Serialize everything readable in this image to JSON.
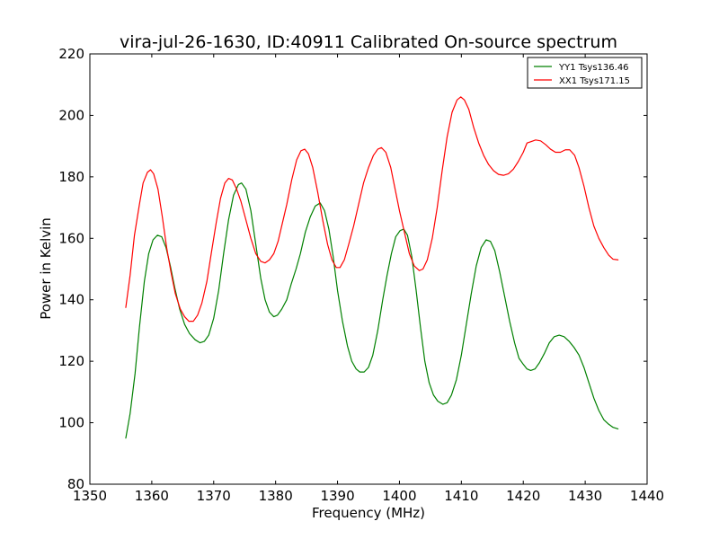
{
  "chart_data": {
    "type": "line",
    "title": "vira-jul-26-1630, ID:40911 Calibrated On-source spectrum",
    "xlabel": "Frequency (MHz)",
    "ylabel": "Power in Kelvin",
    "xlim": [
      1350,
      1440
    ],
    "ylim": [
      80,
      220
    ],
    "xticks": [
      1350,
      1360,
      1370,
      1380,
      1390,
      1400,
      1410,
      1420,
      1430,
      1440
    ],
    "yticks": [
      80,
      100,
      120,
      140,
      160,
      180,
      200,
      220
    ],
    "grid": false,
    "legend_position": "top-right",
    "series": [
      {
        "name": "YY1 Tsys136.46",
        "color": "#008000",
        "points": [
          [
            1355.8,
            95
          ],
          [
            1356.5,
            103
          ],
          [
            1357.3,
            116
          ],
          [
            1358.0,
            131
          ],
          [
            1358.8,
            146
          ],
          [
            1359.5,
            155
          ],
          [
            1360.2,
            159.5
          ],
          [
            1360.9,
            161
          ],
          [
            1361.6,
            160.5
          ],
          [
            1362.3,
            157
          ],
          [
            1363.0,
            151
          ],
          [
            1363.7,
            144
          ],
          [
            1364.5,
            137
          ],
          [
            1365.3,
            132
          ],
          [
            1366.1,
            129
          ],
          [
            1367.0,
            127
          ],
          [
            1367.8,
            126
          ],
          [
            1368.5,
            126.5
          ],
          [
            1369.2,
            128.5
          ],
          [
            1370.0,
            134
          ],
          [
            1370.8,
            143
          ],
          [
            1371.6,
            155
          ],
          [
            1372.4,
            166
          ],
          [
            1373.2,
            174
          ],
          [
            1374.0,
            177.5
          ],
          [
            1374.5,
            178
          ],
          [
            1375.2,
            176
          ],
          [
            1376.0,
            169
          ],
          [
            1376.8,
            158
          ],
          [
            1377.6,
            147
          ],
          [
            1378.3,
            140
          ],
          [
            1379.0,
            136
          ],
          [
            1379.7,
            134.5
          ],
          [
            1380.3,
            135
          ],
          [
            1381.0,
            137
          ],
          [
            1381.8,
            140
          ],
          [
            1382.5,
            145
          ],
          [
            1383.3,
            150
          ],
          [
            1384.0,
            155
          ],
          [
            1384.8,
            162
          ],
          [
            1385.6,
            167
          ],
          [
            1386.4,
            170.5
          ],
          [
            1387.2,
            171.5
          ],
          [
            1387.9,
            169
          ],
          [
            1388.6,
            163
          ],
          [
            1389.3,
            154
          ],
          [
            1390.0,
            143
          ],
          [
            1390.8,
            133
          ],
          [
            1391.6,
            125
          ],
          [
            1392.3,
            120
          ],
          [
            1393.0,
            117.5
          ],
          [
            1393.6,
            116.5
          ],
          [
            1394.3,
            116.5
          ],
          [
            1395.0,
            118
          ],
          [
            1395.7,
            122
          ],
          [
            1396.5,
            130
          ],
          [
            1397.3,
            140
          ],
          [
            1398.0,
            148
          ],
          [
            1398.7,
            155
          ],
          [
            1399.4,
            160.5
          ],
          [
            1400.1,
            162.5
          ],
          [
            1400.7,
            163
          ],
          [
            1401.3,
            161
          ],
          [
            1402.0,
            154
          ],
          [
            1402.7,
            143
          ],
          [
            1403.4,
            131
          ],
          [
            1404.1,
            120
          ],
          [
            1404.8,
            113
          ],
          [
            1405.5,
            109
          ],
          [
            1406.2,
            107
          ],
          [
            1407.0,
            106
          ],
          [
            1407.7,
            106.5
          ],
          [
            1408.4,
            109
          ],
          [
            1409.2,
            114
          ],
          [
            1410.0,
            122
          ],
          [
            1410.8,
            132
          ],
          [
            1411.6,
            142
          ],
          [
            1412.4,
            151
          ],
          [
            1413.2,
            157
          ],
          [
            1414.0,
            159.5
          ],
          [
            1414.7,
            159
          ],
          [
            1415.4,
            156
          ],
          [
            1416.2,
            149
          ],
          [
            1417.0,
            141
          ],
          [
            1417.8,
            133
          ],
          [
            1418.6,
            126
          ],
          [
            1419.3,
            121
          ],
          [
            1420.0,
            119
          ],
          [
            1420.6,
            117.5
          ],
          [
            1421.2,
            117
          ],
          [
            1421.9,
            117.5
          ],
          [
            1422.6,
            119.5
          ],
          [
            1423.4,
            122.5
          ],
          [
            1424.2,
            126
          ],
          [
            1425.0,
            128
          ],
          [
            1425.8,
            128.5
          ],
          [
            1426.6,
            128
          ],
          [
            1427.4,
            126.5
          ],
          [
            1428.2,
            124.5
          ],
          [
            1429.0,
            122
          ],
          [
            1429.8,
            118
          ],
          [
            1430.6,
            113
          ],
          [
            1431.4,
            108
          ],
          [
            1432.2,
            104
          ],
          [
            1433.0,
            101
          ],
          [
            1433.8,
            99.5
          ],
          [
            1434.5,
            98.5
          ],
          [
            1435.3,
            98
          ]
        ]
      },
      {
        "name": "XX1 Tsys171.15",
        "color": "#ff0000",
        "points": [
          [
            1355.8,
            137.5
          ],
          [
            1356.5,
            148
          ],
          [
            1357.2,
            161
          ],
          [
            1358.0,
            171
          ],
          [
            1358.6,
            178
          ],
          [
            1359.3,
            181.5
          ],
          [
            1359.8,
            182.3
          ],
          [
            1360.3,
            181
          ],
          [
            1361.0,
            176
          ],
          [
            1361.7,
            167
          ],
          [
            1362.4,
            157
          ],
          [
            1363.1,
            149
          ],
          [
            1363.8,
            142
          ],
          [
            1364.6,
            137
          ],
          [
            1365.3,
            134.5
          ],
          [
            1366.0,
            133
          ],
          [
            1366.7,
            133
          ],
          [
            1367.4,
            135
          ],
          [
            1368.1,
            139
          ],
          [
            1368.9,
            146
          ],
          [
            1369.6,
            155
          ],
          [
            1370.4,
            165
          ],
          [
            1371.1,
            173
          ],
          [
            1371.8,
            178
          ],
          [
            1372.4,
            179.5
          ],
          [
            1373.0,
            179
          ],
          [
            1373.7,
            176
          ],
          [
            1374.4,
            172
          ],
          [
            1375.2,
            166
          ],
          [
            1376.0,
            160
          ],
          [
            1376.8,
            155
          ],
          [
            1377.6,
            152.5
          ],
          [
            1378.3,
            152
          ],
          [
            1379.0,
            153
          ],
          [
            1379.7,
            155
          ],
          [
            1380.4,
            159
          ],
          [
            1381.1,
            165
          ],
          [
            1381.8,
            171
          ],
          [
            1382.6,
            179
          ],
          [
            1383.4,
            185.5
          ],
          [
            1384.1,
            188.5
          ],
          [
            1384.7,
            189
          ],
          [
            1385.3,
            187.5
          ],
          [
            1386.0,
            183
          ],
          [
            1386.8,
            175
          ],
          [
            1387.6,
            166
          ],
          [
            1388.4,
            158
          ],
          [
            1389.1,
            153
          ],
          [
            1389.8,
            150.5
          ],
          [
            1390.4,
            150.5
          ],
          [
            1391.1,
            153
          ],
          [
            1391.8,
            158
          ],
          [
            1392.6,
            164
          ],
          [
            1393.4,
            171
          ],
          [
            1394.2,
            178
          ],
          [
            1395.0,
            183
          ],
          [
            1395.8,
            187
          ],
          [
            1396.5,
            189
          ],
          [
            1397.1,
            189.5
          ],
          [
            1397.8,
            188
          ],
          [
            1398.6,
            183
          ],
          [
            1399.3,
            176
          ],
          [
            1400.0,
            169
          ],
          [
            1400.8,
            162
          ],
          [
            1401.6,
            155
          ],
          [
            1402.4,
            151
          ],
          [
            1403.2,
            149.5
          ],
          [
            1403.8,
            150
          ],
          [
            1404.5,
            153
          ],
          [
            1405.3,
            160
          ],
          [
            1406.1,
            170
          ],
          [
            1406.9,
            182
          ],
          [
            1407.7,
            193
          ],
          [
            1408.5,
            201
          ],
          [
            1409.3,
            205
          ],
          [
            1409.9,
            206
          ],
          [
            1410.5,
            205
          ],
          [
            1411.2,
            202
          ],
          [
            1412.0,
            196
          ],
          [
            1412.8,
            191
          ],
          [
            1413.6,
            187
          ],
          [
            1414.4,
            184
          ],
          [
            1415.2,
            182
          ],
          [
            1416.0,
            180.8
          ],
          [
            1416.8,
            180.5
          ],
          [
            1417.6,
            181
          ],
          [
            1418.4,
            182.5
          ],
          [
            1419.2,
            185
          ],
          [
            1420.0,
            188
          ],
          [
            1420.6,
            191
          ],
          [
            1421.3,
            191.5
          ],
          [
            1422.0,
            192
          ],
          [
            1422.8,
            191.7
          ],
          [
            1423.6,
            190.5
          ],
          [
            1424.4,
            189
          ],
          [
            1425.2,
            188
          ],
          [
            1426.0,
            188
          ],
          [
            1426.8,
            188.8
          ],
          [
            1427.5,
            188.8
          ],
          [
            1428.3,
            187
          ],
          [
            1429.0,
            183
          ],
          [
            1429.8,
            177
          ],
          [
            1430.6,
            170
          ],
          [
            1431.4,
            164
          ],
          [
            1432.2,
            160
          ],
          [
            1433.0,
            157
          ],
          [
            1433.8,
            154.5
          ],
          [
            1434.5,
            153.2
          ],
          [
            1435.3,
            153
          ]
        ]
      }
    ]
  }
}
